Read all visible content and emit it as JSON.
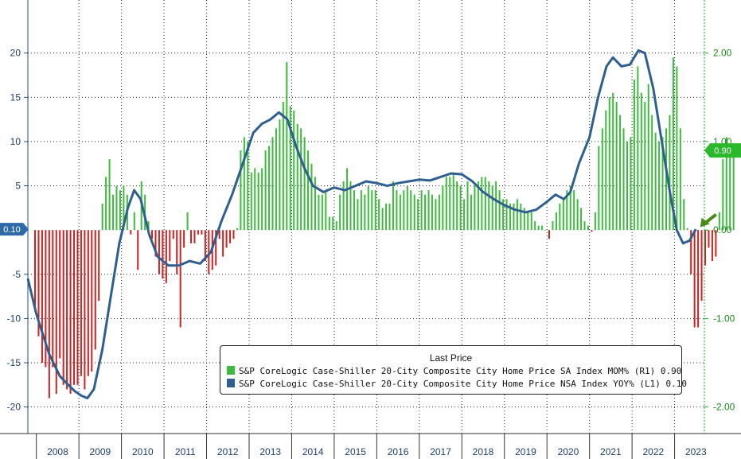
{
  "chart_data": {
    "type": "bar",
    "x_tick_labels": [
      "2008",
      "2009",
      "2010",
      "2011",
      "2012",
      "2013",
      "2014",
      "2015",
      "2016",
      "2017",
      "2018",
      "2019",
      "2020",
      "2021",
      "2022",
      "2023"
    ],
    "x_range": [
      2007.8,
      2023.7
    ],
    "left_axis": {
      "ylim": [
        -23,
        26
      ],
      "ticks": [
        20,
        15,
        10,
        5,
        -5,
        -10,
        -15,
        -20
      ],
      "tick_labels": [
        "20",
        "15",
        "10",
        "5",
        "-5",
        "-10",
        "-15",
        "-20"
      ],
      "last_value_label": "0.10"
    },
    "right_axis": {
      "ylim": [
        -2.3,
        2.6
      ],
      "ticks": [
        2.0,
        1.0,
        0.0,
        -1.0,
        -2.0
      ],
      "tick_labels": [
        "2.00",
        "1.00",
        "0.00",
        "-1.00",
        "-2.00"
      ],
      "last_value_label": "0.90"
    },
    "grid": true,
    "legend_title": "Last Price",
    "series": [
      {
        "name": "S&P CoreLogic Case-Shiller 20-City Composite City Home Price SA Index MOM%",
        "axis": "R1",
        "last": "0.90",
        "type": "bar",
        "pos_color": "#3dbb3d",
        "neg_color": "#cc2222",
        "x_start": 2007.95,
        "step_months": 1,
        "values": [
          -0.92,
          -1.2,
          -1.5,
          -1.55,
          -1.9,
          -1.55,
          -1.85,
          -1.45,
          -1.75,
          -1.8,
          -1.85,
          -1.75,
          -1.75,
          -1.65,
          -1.8,
          -1.65,
          -1.6,
          -1.35,
          -0.8,
          0.3,
          0.6,
          0.8,
          0.4,
          0.5,
          0.45,
          0.5,
          0.4,
          -0.05,
          0.2,
          -0.45,
          0.55,
          0.4,
          0.1,
          -0.1,
          -0.3,
          -0.5,
          -0.55,
          -0.6,
          -0.35,
          -0.1,
          -0.5,
          -1.1,
          -0.2,
          0.2,
          -0.15,
          -0.15,
          -0.05,
          -0.05,
          -0.35,
          -0.5,
          -0.45,
          -0.4,
          -0.1,
          -0.3,
          -0.2,
          -0.15,
          -0.1,
          0.02,
          0.9,
          1.05,
          1.0,
          0.65,
          0.7,
          0.65,
          0.7,
          0.9,
          0.95,
          1.05,
          1.15,
          1.25,
          1.45,
          1.9,
          1.4,
          1.35,
          1.2,
          1.15,
          1.05,
          0.9,
          0.75,
          0.6,
          0.4,
          0.4,
          0.45,
          0.15,
          0.15,
          0.1,
          0.4,
          0.55,
          0.7,
          0.55,
          0.45,
          0.35,
          0.45,
          0.4,
          0.5,
          0.45,
          0.45,
          0.35,
          0.25,
          0.3,
          0.3,
          0.55,
          0.45,
          0.4,
          0.45,
          0.5,
          0.45,
          0.4,
          0.35,
          0.45,
          0.4,
          0.45,
          0.4,
          0.35,
          0.4,
          0.5,
          0.6,
          0.6,
          0.65,
          0.55,
          0.5,
          0.35,
          0.55,
          0.4,
          0.5,
          0.55,
          0.6,
          0.6,
          0.55,
          0.5,
          0.55,
          0.45,
          0.35,
          0.35,
          0.3,
          0.3,
          0.35,
          0.3,
          0.25,
          0.2,
          0.2,
          0.1,
          0.05,
          0.05,
          0.0,
          -0.1,
          0.1,
          0.2,
          0.3,
          0.35,
          0.45,
          0.5,
          0.45,
          0.35,
          0.25,
          0.1,
          0.05,
          -0.02,
          0.2,
          0.95,
          1.15,
          1.35,
          1.5,
          1.55,
          1.45,
          1.3,
          1.15,
          1.0,
          1.05,
          1.7,
          1.85,
          1.55,
          1.45,
          1.65,
          1.3,
          1.1,
          1.0,
          1.05,
          1.15,
          1.3,
          1.95,
          1.85,
          1.15,
          0.35,
          0.02,
          -0.5,
          -1.1,
          -1.1,
          -0.8,
          -0.4,
          -0.2,
          -0.35,
          -0.3,
          0.2,
          0.8,
          1.05,
          0.9,
          0.9
        ]
      },
      {
        "name": "S&P CoreLogic Case-Shiller 20-City Composite City Home Price NSA Index YOY%",
        "axis": "L1",
        "last": "0.10",
        "type": "line",
        "color": "#2e5f8f",
        "points": [
          [
            2007.8,
            -5.5
          ],
          [
            2008.0,
            -9.5
          ],
          [
            2008.3,
            -14.0
          ],
          [
            2008.55,
            -16.5
          ],
          [
            2008.75,
            -17.5
          ],
          [
            2008.9,
            -18.2
          ],
          [
            2009.05,
            -18.7
          ],
          [
            2009.2,
            -19.0
          ],
          [
            2009.35,
            -18.0
          ],
          [
            2009.55,
            -13.5
          ],
          [
            2009.75,
            -7.5
          ],
          [
            2009.95,
            -1.5
          ],
          [
            2010.15,
            2.5
          ],
          [
            2010.3,
            4.5
          ],
          [
            2010.45,
            3.5
          ],
          [
            2010.65,
            -0.5
          ],
          [
            2010.85,
            -3.0
          ],
          [
            2011.1,
            -4.0
          ],
          [
            2011.35,
            -4.0
          ],
          [
            2011.6,
            -3.5
          ],
          [
            2011.85,
            -3.8
          ],
          [
            2012.1,
            -2.5
          ],
          [
            2012.35,
            1.0
          ],
          [
            2012.6,
            4.0
          ],
          [
            2012.85,
            7.5
          ],
          [
            2013.1,
            11.0
          ],
          [
            2013.3,
            12.0
          ],
          [
            2013.5,
            12.5
          ],
          [
            2013.7,
            13.3
          ],
          [
            2013.9,
            12.5
          ],
          [
            2014.1,
            9.5
          ],
          [
            2014.3,
            7.0
          ],
          [
            2014.5,
            5.0
          ],
          [
            2014.75,
            4.3
          ],
          [
            2015.0,
            4.8
          ],
          [
            2015.25,
            4.5
          ],
          [
            2015.5,
            5.0
          ],
          [
            2015.75,
            5.5
          ],
          [
            2016.0,
            5.3
          ],
          [
            2016.25,
            5.0
          ],
          [
            2016.5,
            5.3
          ],
          [
            2016.75,
            5.5
          ],
          [
            2017.0,
            5.7
          ],
          [
            2017.25,
            5.6
          ],
          [
            2017.5,
            6.0
          ],
          [
            2017.75,
            6.4
          ],
          [
            2018.0,
            6.3
          ],
          [
            2018.25,
            5.5
          ],
          [
            2018.5,
            4.3
          ],
          [
            2018.75,
            3.5
          ],
          [
            2019.0,
            2.8
          ],
          [
            2019.25,
            2.3
          ],
          [
            2019.5,
            2.0
          ],
          [
            2019.75,
            2.3
          ],
          [
            2020.0,
            3.2
          ],
          [
            2020.2,
            4.0
          ],
          [
            2020.4,
            3.5
          ],
          [
            2020.55,
            4.3
          ],
          [
            2020.75,
            7.5
          ],
          [
            2021.0,
            10.5
          ],
          [
            2021.2,
            15.0
          ],
          [
            2021.4,
            18.5
          ],
          [
            2021.55,
            19.5
          ],
          [
            2021.75,
            18.5
          ],
          [
            2021.95,
            18.7
          ],
          [
            2022.15,
            20.3
          ],
          [
            2022.3,
            20.0
          ],
          [
            2022.5,
            16.0
          ],
          [
            2022.7,
            10.0
          ],
          [
            2022.9,
            4.0
          ],
          [
            2023.05,
            0.0
          ],
          [
            2023.2,
            -1.5
          ],
          [
            2023.35,
            -1.2
          ],
          [
            2023.5,
            0.1
          ]
        ]
      }
    ]
  }
}
